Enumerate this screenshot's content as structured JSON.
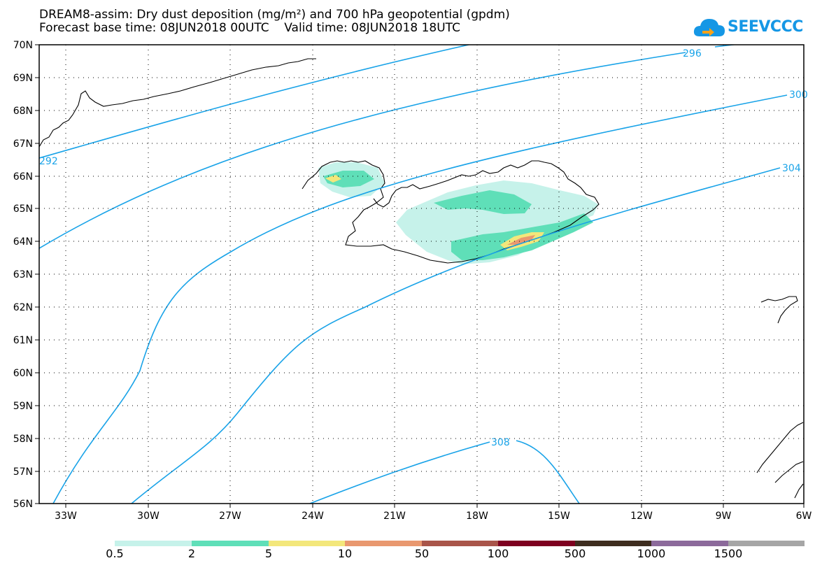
{
  "header": {
    "title_line1": "DREAM8-assim: Dry dust deposition (mg/m²) and 700 hPa geopotential (gpdm)",
    "title_line2": "Forecast base time: 08JUN2018 00UTC    Valid time: 08JUN2018 18UTC"
  },
  "logo": {
    "text": "SEEVCCC"
  },
  "map": {
    "lat_labels": [
      "70N",
      "69N",
      "68N",
      "67N",
      "66N",
      "65N",
      "64N",
      "63N",
      "62N",
      "61N",
      "60N",
      "59N",
      "58N",
      "57N",
      "56N"
    ],
    "lon_labels": [
      "33W",
      "30W",
      "27W",
      "24W",
      "21W",
      "18W",
      "15W",
      "12W",
      "9W",
      "6W"
    ],
    "contour_labels": [
      "292",
      "296",
      "300",
      "304",
      "308"
    ],
    "contour_color": "#19a3e8",
    "coast_color": "#000000"
  },
  "legend": {
    "values": [
      "0.5",
      "2",
      "5",
      "10",
      "50",
      "100",
      "500",
      "1000",
      "1500"
    ],
    "colors": [
      "#c6f2ea",
      "#5fdfb8",
      "#f3e77b",
      "#e9986f",
      "#a9554a",
      "#7e0020",
      "#3e2d1f",
      "#8c6a9b",
      "#a6a6a6"
    ]
  }
}
